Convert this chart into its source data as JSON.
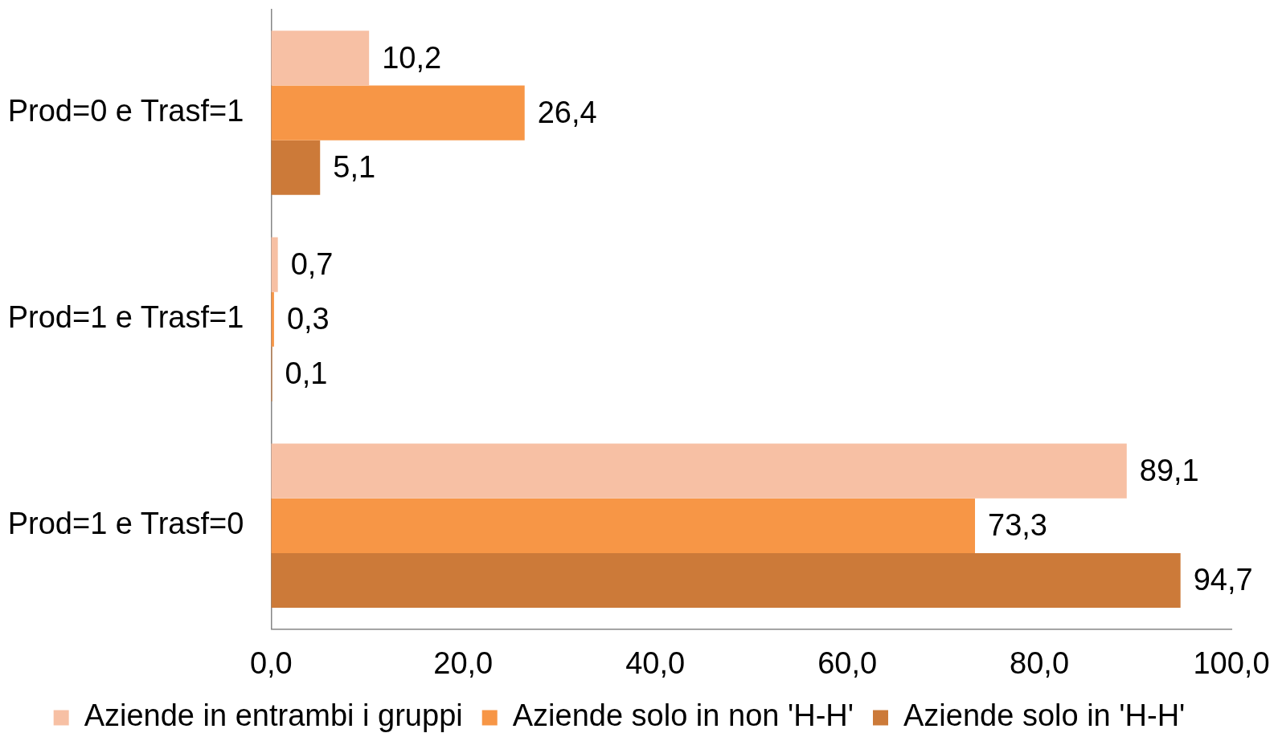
{
  "chart_data": {
    "type": "bar",
    "orientation": "horizontal",
    "categories": [
      "Prod=0 e Trasf=1",
      "Prod=1 e Trasf=1",
      "Prod=1 e Trasf=0"
    ],
    "series": [
      {
        "name": "Aziende in entrambi i gruppi",
        "color": "#f7c0a4",
        "values": [
          10.2,
          0.7,
          89.1
        ],
        "value_labels": [
          "10,2",
          "0,7",
          "89,1"
        ]
      },
      {
        "name": "Aziende solo in non 'H-H'",
        "color": "#f79646",
        "values": [
          26.4,
          0.3,
          73.3
        ],
        "value_labels": [
          "26,4",
          "0,3",
          "73,3"
        ]
      },
      {
        "name": "Aziende solo in 'H-H'",
        "color": "#cc7a39",
        "values": [
          5.1,
          0.1,
          94.7
        ],
        "value_labels": [
          "5,1",
          "0,1",
          "94,7"
        ]
      }
    ],
    "xlim": [
      0,
      100
    ],
    "xticks": [
      {
        "value": 0,
        "label": "0,0"
      },
      {
        "value": 20,
        "label": "20,0"
      },
      {
        "value": 40,
        "label": "40,0"
      },
      {
        "value": 60,
        "label": "60,0"
      },
      {
        "value": 80,
        "label": "80,0"
      },
      {
        "value": 100,
        "label": "100,0"
      }
    ],
    "grid": false,
    "legend": "bottom"
  }
}
